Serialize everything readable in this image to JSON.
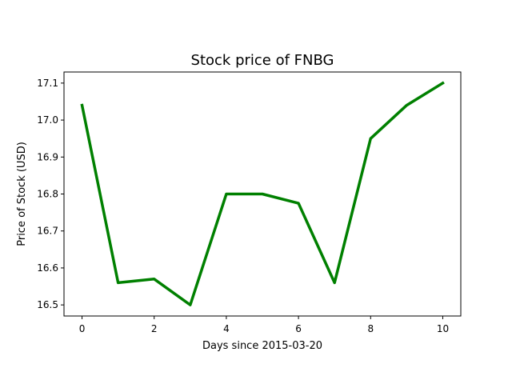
{
  "chart_data": {
    "type": "line",
    "title": "Stock price of FNBG",
    "xlabel": "Days since 2015-03-20",
    "ylabel": "Price of Stock (USD)",
    "xlim": [
      -0.5,
      10.5
    ],
    "ylim": [
      16.47,
      17.13
    ],
    "xticks": [
      0,
      2,
      4,
      6,
      8,
      10
    ],
    "xtick_labels": [
      "0",
      "2",
      "4",
      "6",
      "8",
      "10"
    ],
    "yticks": [
      16.5,
      16.6,
      16.7,
      16.8,
      16.9,
      17.0,
      17.1
    ],
    "ytick_labels": [
      "16.5",
      "16.6",
      "16.7",
      "16.8",
      "16.9",
      "17.0",
      "17.1"
    ],
    "grid": false,
    "series": [
      {
        "color": "#008000",
        "x": [
          0,
          1,
          2,
          3,
          4,
          5,
          6,
          7,
          8,
          9,
          10
        ],
        "values": [
          17.04,
          16.56,
          16.57,
          16.5,
          16.8,
          16.8,
          16.775,
          16.56,
          16.95,
          17.04,
          17.1
        ]
      }
    ]
  }
}
